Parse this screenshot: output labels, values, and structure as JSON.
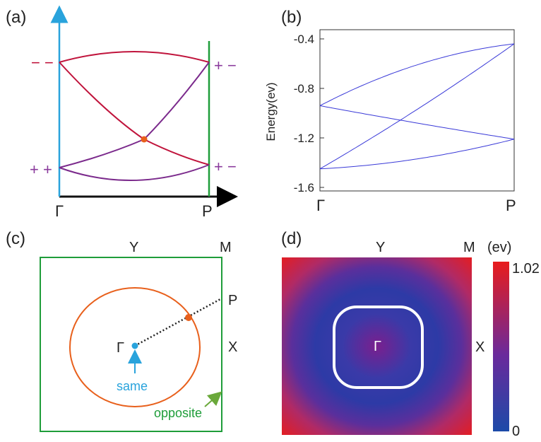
{
  "panels": {
    "a": {
      "label": "(a)",
      "left_sign": [
        "− −",
        "+ +"
      ],
      "right_sign": [
        "+ −",
        "+ −"
      ],
      "gamma": "Γ",
      "p": "P"
    },
    "b": {
      "label": "(b)",
      "gamma": "Γ",
      "p": "P"
    },
    "c": {
      "label": "(c)",
      "y": "Y",
      "m": "M",
      "p": "P",
      "x": "X",
      "gamma": "Γ",
      "same": "same",
      "opposite": "opposite"
    },
    "d": {
      "label": "(d)",
      "y": "Y",
      "m": "M",
      "x": "X",
      "gamma": "Γ",
      "unit": "(ev)",
      "cbar_max": "1.02",
      "cbar_min": "0"
    }
  },
  "chart_data": {
    "type": "line",
    "ylabel": "Energy(ev)",
    "xlabel": "",
    "categories": [
      "Γ",
      "P"
    ],
    "ylim": [
      -1.6,
      -0.4
    ],
    "yticks": [
      "-0.4",
      "-0.8",
      "-1.2",
      "-1.6"
    ],
    "series": [
      {
        "x": [
          0,
          0.5,
          1
        ],
        "values": [
          -0.94,
          -0.61,
          -0.44
        ]
      },
      {
        "x": [
          0,
          0.5,
          1
        ],
        "values": [
          -0.94,
          -1.08,
          -1.21
        ]
      },
      {
        "x": [
          0,
          0.5,
          1
        ],
        "values": [
          -1.45,
          -0.97,
          -0.44
        ]
      },
      {
        "x": [
          0,
          0.5,
          1
        ],
        "values": [
          -1.45,
          -1.37,
          -1.21
        ]
      }
    ],
    "grid": false
  },
  "colors": {
    "red": "#c0143c",
    "purple": "#7b2a8c",
    "blue_axis": "#29a3dc",
    "green": "#1f9d3a",
    "orange": "#e8601c",
    "band_line": "#3a3ad8",
    "label_purple": "#8a3a9c",
    "label_red": "#c0143c"
  }
}
